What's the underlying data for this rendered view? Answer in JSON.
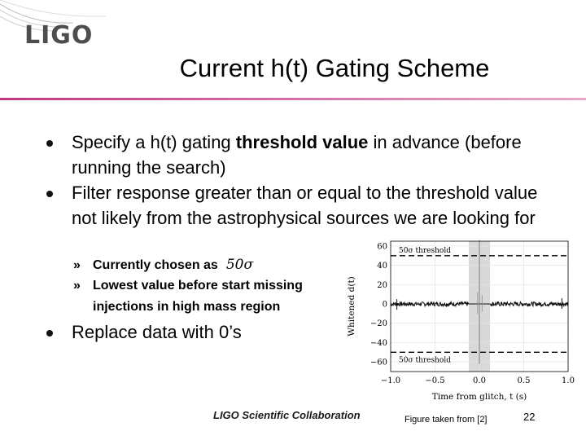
{
  "logo": {
    "text": "LIGO"
  },
  "slide": {
    "title": "Current h(t) Gating Scheme"
  },
  "bullets": [
    {
      "pre": "Specify a h(t) gating ",
      "bold": "threshold value",
      "post": " in advance (before running the search)"
    },
    {
      "text": "Filter response greater than or equal to the threshold value not likely from the astrophysical sources we are looking for"
    },
    {
      "text": "Replace data with 0’s"
    }
  ],
  "sub_bullets": [
    {
      "marker": "»",
      "text": "Currently chosen as",
      "math": "50σ"
    },
    {
      "marker": "»",
      "text": "Lowest value before start missing"
    },
    {
      "marker": "",
      "text": "injections in high mass region"
    }
  ],
  "footer": {
    "collaboration": "LIGO Scientific Collaboration",
    "caption": "Figure taken from [2]",
    "page": "22"
  },
  "chart_data": {
    "type": "line",
    "xlabel": "Time from glitch, t (s)",
    "ylabel": "Whitened d(t)",
    "xlim": [
      -1.0,
      1.0
    ],
    "ylim": [
      -70,
      65
    ],
    "xticks": [
      "−1.0",
      "−0.5",
      "0.0",
      "0.5",
      "1.0"
    ],
    "yticks": [
      "60",
      "40",
      "20",
      "0",
      "−20",
      "−40",
      "−60"
    ],
    "ytick_values": [
      60,
      40,
      20,
      0,
      -20,
      -40,
      -60
    ],
    "xtick_values": [
      -1.0,
      -0.5,
      0.0,
      0.5,
      1.0
    ],
    "threshold_upper_label": "50σ threshold",
    "threshold_lower_label": "50σ threshold",
    "thresholds": [
      50,
      -50
    ],
    "gated_window": [
      -0.12,
      0.12
    ],
    "glitch_peak": [
      66,
      -62
    ],
    "noise_level": 1.5,
    "grid": true,
    "colors": {
      "signal": "#111111",
      "gated": "#888888",
      "window": "#d9d9d9",
      "threshold": "#000000"
    }
  },
  "colors": {
    "rule_start": "#c03880",
    "rule_end": "#e8a8c8",
    "logo": "#4d4d4d"
  }
}
